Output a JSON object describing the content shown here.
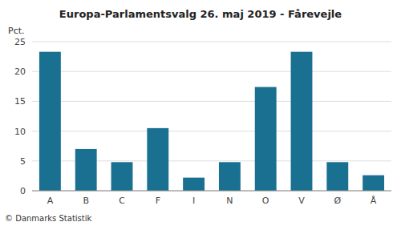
{
  "chart_data": {
    "type": "bar",
    "title": "Europa-Parlamentsvalg 26. maj 2019 - Fårevejle",
    "ylabel": "Pct.",
    "categories": [
      "A",
      "B",
      "C",
      "F",
      "I",
      "N",
      "O",
      "V",
      "Ø",
      "Å"
    ],
    "values": [
      23.3,
      7.0,
      4.8,
      10.5,
      2.2,
      4.8,
      17.4,
      23.3,
      4.8,
      2.6
    ],
    "color": "#1a7090",
    "ylim": [
      0,
      25
    ],
    "yticks": [
      0,
      5,
      10,
      15,
      20,
      25
    ],
    "grid": true,
    "annotations": [
      "© Danmarks Statistik"
    ]
  }
}
